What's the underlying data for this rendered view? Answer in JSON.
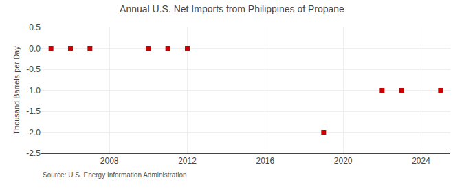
{
  "chart_data": {
    "type": "scatter",
    "title": "Annual U.S. Net Imports from Philippines of Propane",
    "ylabel": "Thousand Barrels per Day",
    "source": "Source: U.S. Energy Information Administration",
    "x": [
      2005,
      2006,
      2007,
      2010,
      2011,
      2012,
      2019,
      2022,
      2023,
      2025
    ],
    "values": [
      0,
      0,
      0,
      0,
      0,
      0,
      -2.0,
      -1.0,
      -1.0,
      -1.0
    ],
    "color": "#cc0000",
    "marker": "square",
    "xlim": [
      2004.5,
      2025.5
    ],
    "xticks": [
      2008,
      2012,
      2016,
      2020,
      2024
    ],
    "ylim": [
      -2.5,
      0.5
    ],
    "yticks": [
      0.5,
      {
        "value": 0,
        "label": "0.0"
      },
      -0.5,
      {
        "value": -1,
        "label": "-1.0"
      },
      -1.5,
      {
        "value": -2,
        "label": "-2.0"
      },
      -2.5
    ],
    "grid": true
  }
}
